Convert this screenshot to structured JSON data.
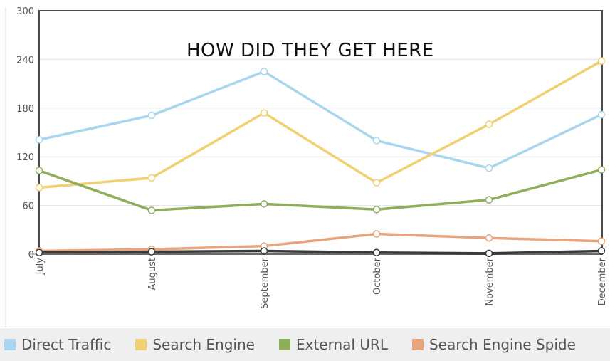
{
  "chart_data": {
    "type": "line",
    "title": "HOW DID THEY GET HERE",
    "categories": [
      "July",
      "August",
      "September",
      "October",
      "November",
      "December"
    ],
    "ylim": [
      0,
      300
    ],
    "yticks": [
      "0",
      "60",
      "120",
      "180",
      "240",
      "300"
    ],
    "grid": true,
    "legend_position": "bottom",
    "series": [
      {
        "name": "Direct Traffic",
        "color": "#a9d6ee",
        "values": [
          141,
          171,
          225,
          140,
          106,
          172
        ]
      },
      {
        "name": "Search Engine",
        "color": "#f0d071",
        "values": [
          82,
          94,
          174,
          88,
          160,
          238
        ]
      },
      {
        "name": "External URL",
        "color": "#8eae5a",
        "values": [
          103,
          54,
          62,
          55,
          67,
          104
        ]
      },
      {
        "name": "Search Engine Spide",
        "color": "#e8a57d",
        "values": [
          4,
          6,
          10,
          25,
          20,
          16
        ]
      },
      {
        "name": "",
        "color": "#3a3a3a",
        "values": [
          2,
          3,
          4,
          2,
          1,
          4
        ]
      }
    ]
  }
}
